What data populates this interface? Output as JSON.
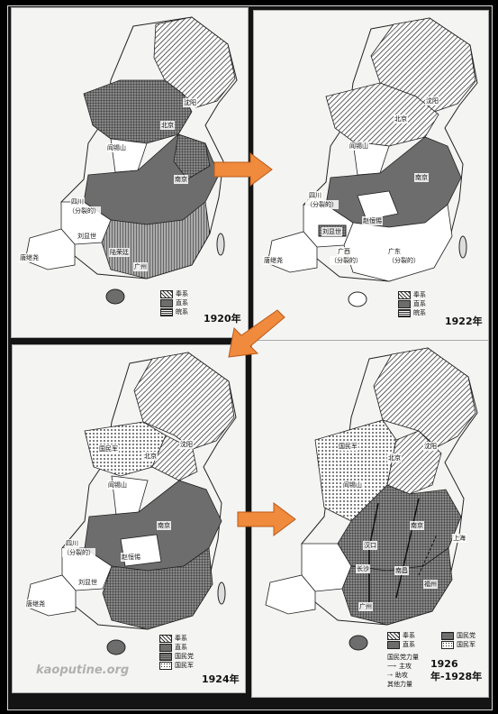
{
  "maps": [
    {
      "year": "1920年",
      "places": {
        "shenyang": "沈阳",
        "beijing": "北京",
        "yanxishan": "阎锡山",
        "nanjing": "南京",
        "sichuan": "四川",
        "sichuan_sub": "（分裂的）",
        "liuxianshi": "刘显世",
        "tangjiyao": "唐继尧",
        "lurongting": "陆荣廷",
        "guangzhou": "广州"
      },
      "legend": [
        "奉系",
        "直系",
        "皖系"
      ]
    },
    {
      "year": "1922年",
      "places": {
        "shenyang": "沈阳",
        "beijing": "北京",
        "yanxishan": "阎锡山",
        "nanjing": "南京",
        "sichuan": "四川",
        "sichuan_sub": "（分裂的）",
        "zhaohengti": "赵恒惕",
        "liuxianshi": "刘显世",
        "tangjiyao": "唐继尧",
        "guangxi": "广西",
        "guangxi_sub": "（分裂的）",
        "guangdong": "广东",
        "guangdong_sub": "（分裂的）"
      },
      "legend": [
        "奉系",
        "直系",
        "皖系"
      ]
    },
    {
      "year": "1924年",
      "places": {
        "guominjun": "国民军",
        "shenyang": "沈阳",
        "beijing": "北京",
        "yanxishan": "阎锡山",
        "nanjing": "南京",
        "sichuan": "四川",
        "sichuan_sub": "（分裂的）",
        "zhaohengti": "赵恒惕",
        "liuxianshi": "刘显世",
        "tangjiyao": "唐继尧"
      },
      "legend": [
        "奉系",
        "直系",
        "国民党",
        "国民军"
      ]
    },
    {
      "year": "1926年-1928年",
      "places": {
        "guominjun": "国民军",
        "shenyang": "沈阳",
        "beijing": "北京",
        "yanxishan": "阎锡山",
        "nanjing": "南京",
        "shanghai": "上海",
        "hankou": "汉口",
        "changsha": "长沙",
        "nanchang": "南昌",
        "fuzhou": "福州",
        "guangzhou": "广州"
      },
      "legend": [
        "奉系",
        "直系",
        "国民党",
        "国民军"
      ],
      "legend_extra": {
        "title": "国民党力量",
        "main": "主攻",
        "aux": "助攻",
        "other": "其他力量"
      }
    }
  ],
  "watermark": "kaoputine.org",
  "colors": {
    "arrow": "#f08a3c",
    "zhi": "#6d6d6d",
    "sea": "#f4f4f2"
  }
}
